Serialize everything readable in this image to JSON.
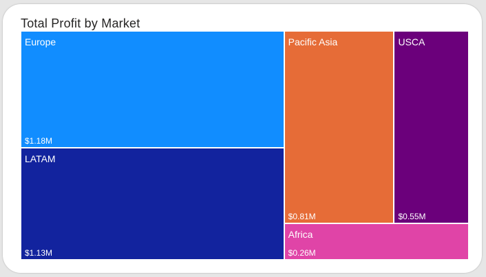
{
  "visual": {
    "title": "Total Profit by Market"
  },
  "chart_data": {
    "type": "treemap",
    "title": "Total Profit by Market",
    "unit": "$M",
    "items": [
      {
        "name": "Europe",
        "value": 1.18,
        "label": "$1.18M",
        "color": "#118DFF"
      },
      {
        "name": "LATAM",
        "value": 1.13,
        "label": "$1.13M",
        "color": "#12239E"
      },
      {
        "name": "Pacific Asia",
        "value": 0.81,
        "label": "$0.81M",
        "color": "#E66C37"
      },
      {
        "name": "USCA",
        "value": 0.55,
        "label": "$0.55M",
        "color": "#6B007B"
      },
      {
        "name": "Africa",
        "value": 0.26,
        "label": "$0.26M",
        "color": "#E044A7"
      }
    ]
  }
}
